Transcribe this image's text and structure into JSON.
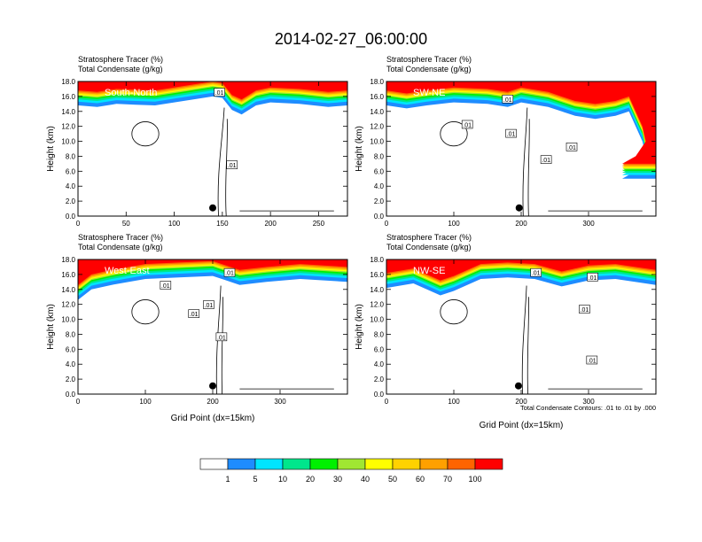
{
  "title": "2014-02-27_06:00:00",
  "left_title_top": "Stratosphere Tracer   (%)",
  "left_title_bottom": "Total Condensate   (g/kg)",
  "y_axis_label": "Height (km)",
  "x_axis_label": "Grid Point (dx=15km)",
  "contour_note": "Total Condensate Contours: .01 to .01 by .000",
  "contour_label": ".01",
  "colors": {
    "frame": "#000000",
    "contour": "#000000",
    "marker": "#000000"
  },
  "colorbar": {
    "colors": [
      "#ffffff",
      "#1e8cff",
      "#00e5ff",
      "#00e68c",
      "#00f000",
      "#a0e632",
      "#ffff00",
      "#ffd200",
      "#ffa000",
      "#ff6400",
      "#ff0000"
    ],
    "labels": [
      "1",
      "5",
      "10",
      "20",
      "30",
      "40",
      "50",
      "60",
      "70",
      "100"
    ]
  },
  "chart_data": [
    {
      "type": "heatmap",
      "panel_label": "South-North",
      "x_ticks": [
        "0",
        "50",
        "100",
        "150",
        "200",
        "250"
      ],
      "x_tick_values": [
        0,
        50,
        100,
        150,
        200,
        250
      ],
      "xlim": [
        0,
        280
      ],
      "y_ticks": [
        "0.0",
        "2.0",
        "4.0",
        "6.0",
        "8.0",
        "10.0",
        "12.0",
        "14.0",
        "16.0",
        "18.0"
      ],
      "ylim": [
        0,
        18
      ],
      "marker_point": [
        140,
        1.1
      ],
      "tracer_layer": [
        [
          0,
          14.8
        ],
        [
          20,
          14.6
        ],
        [
          40,
          15.0
        ],
        [
          60,
          14.9
        ],
        [
          80,
          14.8
        ],
        [
          100,
          15.2
        ],
        [
          120,
          15.6
        ],
        [
          140,
          16.0
        ],
        [
          150,
          15.8
        ],
        [
          160,
          14.2
        ],
        [
          170,
          13.6
        ],
        [
          185,
          14.8
        ],
        [
          200,
          15.2
        ],
        [
          230,
          15.0
        ],
        [
          260,
          14.6
        ],
        [
          280,
          14.8
        ]
      ],
      "contour_label_positions": [
        [
          147,
          16.5
        ],
        [
          160,
          6.8
        ]
      ]
    },
    {
      "type": "heatmap",
      "panel_label": "SW-NE",
      "x_ticks": [
        "0",
        "100",
        "200",
        "300"
      ],
      "x_tick_values": [
        0,
        100,
        200,
        300
      ],
      "xlim": [
        0,
        400
      ],
      "y_ticks": [
        "0.0",
        "2.0",
        "4.0",
        "6.0",
        "8.0",
        "10.0",
        "12.0",
        "14.0",
        "16.0",
        "18.0"
      ],
      "ylim": [
        0,
        18
      ],
      "marker_point": [
        197,
        1.1
      ],
      "tracer_layer": [
        [
          0,
          14.8
        ],
        [
          30,
          14.4
        ],
        [
          60,
          14.8
        ],
        [
          100,
          15.2
        ],
        [
          150,
          15.0
        ],
        [
          180,
          14.6
        ],
        [
          200,
          15.2
        ],
        [
          240,
          14.6
        ],
        [
          280,
          13.4
        ],
        [
          310,
          13.0
        ],
        [
          340,
          13.4
        ],
        [
          360,
          14.0
        ],
        [
          380,
          10.0
        ],
        [
          385,
          8.0
        ],
        [
          370,
          6.0
        ],
        [
          350,
          5.0
        ],
        [
          400,
          5.0
        ]
      ],
      "contour_label_positions": [
        [
          120,
          12.2
        ],
        [
          180,
          15.6
        ],
        [
          185,
          11.0
        ],
        [
          237,
          7.5
        ],
        [
          275,
          9.2
        ]
      ]
    },
    {
      "type": "heatmap",
      "panel_label": "West-East",
      "x_ticks": [
        "0",
        "100",
        "200",
        "300"
      ],
      "x_tick_values": [
        0,
        100,
        200,
        300
      ],
      "xlim": [
        0,
        400
      ],
      "y_ticks": [
        "0.0",
        "2.0",
        "4.0",
        "6.0",
        "8.0",
        "10.0",
        "12.0",
        "14.0",
        "16.0",
        "18.0"
      ],
      "ylim": [
        0,
        18
      ],
      "marker_point": [
        200,
        1.1
      ],
      "tracer_layer": [
        [
          0,
          12.6
        ],
        [
          20,
          14.0
        ],
        [
          50,
          14.6
        ],
        [
          100,
          15.4
        ],
        [
          150,
          15.6
        ],
        [
          200,
          15.8
        ],
        [
          220,
          15.2
        ],
        [
          240,
          14.6
        ],
        [
          280,
          15.0
        ],
        [
          330,
          15.4
        ],
        [
          400,
          15.0
        ]
      ],
      "contour_label_positions": [
        [
          225,
          16.2
        ],
        [
          130,
          14.5
        ],
        [
          194,
          11.9
        ],
        [
          172,
          10.7
        ],
        [
          213,
          7.6
        ]
      ]
    },
    {
      "type": "heatmap",
      "panel_label": "NW-SE",
      "x_ticks": [
        "0",
        "100",
        "200",
        "300"
      ],
      "x_tick_values": [
        0,
        100,
        200,
        300
      ],
      "xlim": [
        0,
        400
      ],
      "y_ticks": [
        "0.0",
        "2.0",
        "4.0",
        "6.0",
        "8.0",
        "10.0",
        "12.0",
        "14.0",
        "16.0",
        "18.0"
      ],
      "ylim": [
        0,
        18
      ],
      "marker_point": [
        196,
        1.1
      ],
      "tracer_layer": [
        [
          0,
          14.2
        ],
        [
          40,
          14.8
        ],
        [
          80,
          13.2
        ],
        [
          100,
          13.8
        ],
        [
          140,
          15.4
        ],
        [
          180,
          15.6
        ],
        [
          220,
          15.4
        ],
        [
          260,
          14.4
        ],
        [
          300,
          15.2
        ],
        [
          340,
          15.4
        ],
        [
          400,
          14.6
        ]
      ],
      "contour_label_positions": [
        [
          222,
          16.2
        ],
        [
          306,
          15.6
        ],
        [
          294,
          11.3
        ],
        [
          305,
          4.5
        ]
      ]
    }
  ]
}
